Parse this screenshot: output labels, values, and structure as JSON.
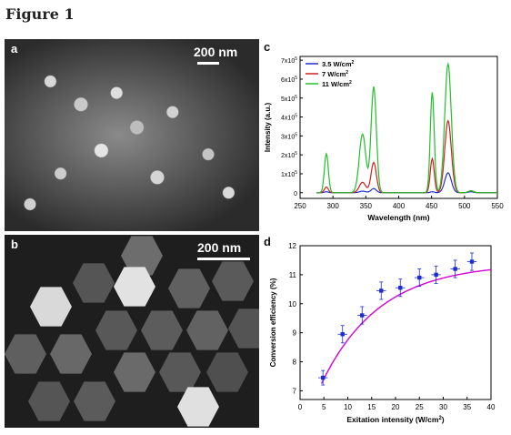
{
  "figure_title": "Figure 1",
  "panels": {
    "a": {
      "letter": "a",
      "scale": "200 nm"
    },
    "b": {
      "letter": "b",
      "scale": "200 nm"
    },
    "c": {
      "letter": "c"
    },
    "d": {
      "letter": "d"
    }
  },
  "chart_data": [
    {
      "type": "line",
      "panel": "c",
      "xlabel": "Wavelength (nm)",
      "ylabel": "Intensity (a.u.)",
      "xlim": [
        250,
        550
      ],
      "ylim": [
        -0.3,
        7.2
      ],
      "y_multiplier": "x10^5",
      "xticks": [
        250,
        300,
        350,
        400,
        450,
        500,
        550
      ],
      "yticks": [
        0,
        1,
        2,
        3,
        4,
        5,
        6,
        7
      ],
      "ytick_labels": [
        "0",
        "1x10",
        "2x10",
        "3x10",
        "4x10",
        "5x10",
        "6x10",
        "7x10"
      ],
      "ytick_exp": "5",
      "legend_position": "top-left",
      "series": [
        {
          "name": "3.5  W/cm",
          "sup": "2",
          "color": "#1f2fc9",
          "peaks": [
            [
              290,
              0.05,
              3
            ],
            [
              345,
              0.08,
              5
            ],
            [
              362,
              0.22,
              4
            ],
            [
              451,
              0.05,
              3
            ],
            [
              475,
              1.05,
              5
            ],
            [
              510,
              0.05,
              4
            ]
          ]
        },
        {
          "name": "7  W/cm",
          "sup": "2",
          "color": "#d21f1f",
          "peaks": [
            [
              290,
              0.3,
              3
            ],
            [
              345,
              0.55,
              5
            ],
            [
              362,
              1.6,
              4
            ],
            [
              451,
              1.8,
              3
            ],
            [
              475,
              3.8,
              5
            ],
            [
              510,
              0.1,
              4
            ]
          ]
        },
        {
          "name": "11  W/cm",
          "sup": "2",
          "color": "#22c02a",
          "peaks": [
            [
              290,
              2.05,
              3
            ],
            [
              345,
              3.1,
              5
            ],
            [
              362,
              5.6,
              4
            ],
            [
              451,
              5.3,
              3
            ],
            [
              475,
              6.8,
              5
            ],
            [
              510,
              0.1,
              4
            ]
          ]
        }
      ]
    },
    {
      "type": "scatter",
      "panel": "d",
      "xlabel": "Exitation intensity (W/cm",
      "xlabel_sup": "2",
      "xlabel_end": ")",
      "ylabel": "Conversion efficiency (%)",
      "xlim": [
        0,
        40
      ],
      "ylim": [
        6.7,
        12
      ],
      "xticks": [
        0,
        5,
        10,
        15,
        20,
        25,
        30,
        35,
        40
      ],
      "yticks": [
        7,
        8,
        9,
        10,
        11,
        12
      ],
      "points": [
        {
          "x": 4.8,
          "y": 7.45,
          "xerr": 1.0,
          "yerr": 0.25
        },
        {
          "x": 8.9,
          "y": 8.95,
          "xerr": 1.0,
          "yerr": 0.3
        },
        {
          "x": 13.0,
          "y": 9.6,
          "xerr": 1.0,
          "yerr": 0.3
        },
        {
          "x": 17.0,
          "y": 10.45,
          "xerr": 1.0,
          "yerr": 0.3
        },
        {
          "x": 21.0,
          "y": 10.55,
          "xerr": 1.0,
          "yerr": 0.3
        },
        {
          "x": 25.0,
          "y": 10.9,
          "xerr": 1.0,
          "yerr": 0.3
        },
        {
          "x": 28.5,
          "y": 11.0,
          "xerr": 1.0,
          "yerr": 0.3
        },
        {
          "x": 32.5,
          "y": 11.2,
          "xerr": 1.0,
          "yerr": 0.3
        },
        {
          "x": 36.0,
          "y": 11.45,
          "xerr": 1.0,
          "yerr": 0.3
        }
      ],
      "fit_color": "#d400d4",
      "point_color": "#1c2bd0",
      "fit": {
        "a": 11.4,
        "b": 6.2,
        "k": 0.082,
        "x0": 4.5,
        "x1": 40
      }
    }
  ]
}
